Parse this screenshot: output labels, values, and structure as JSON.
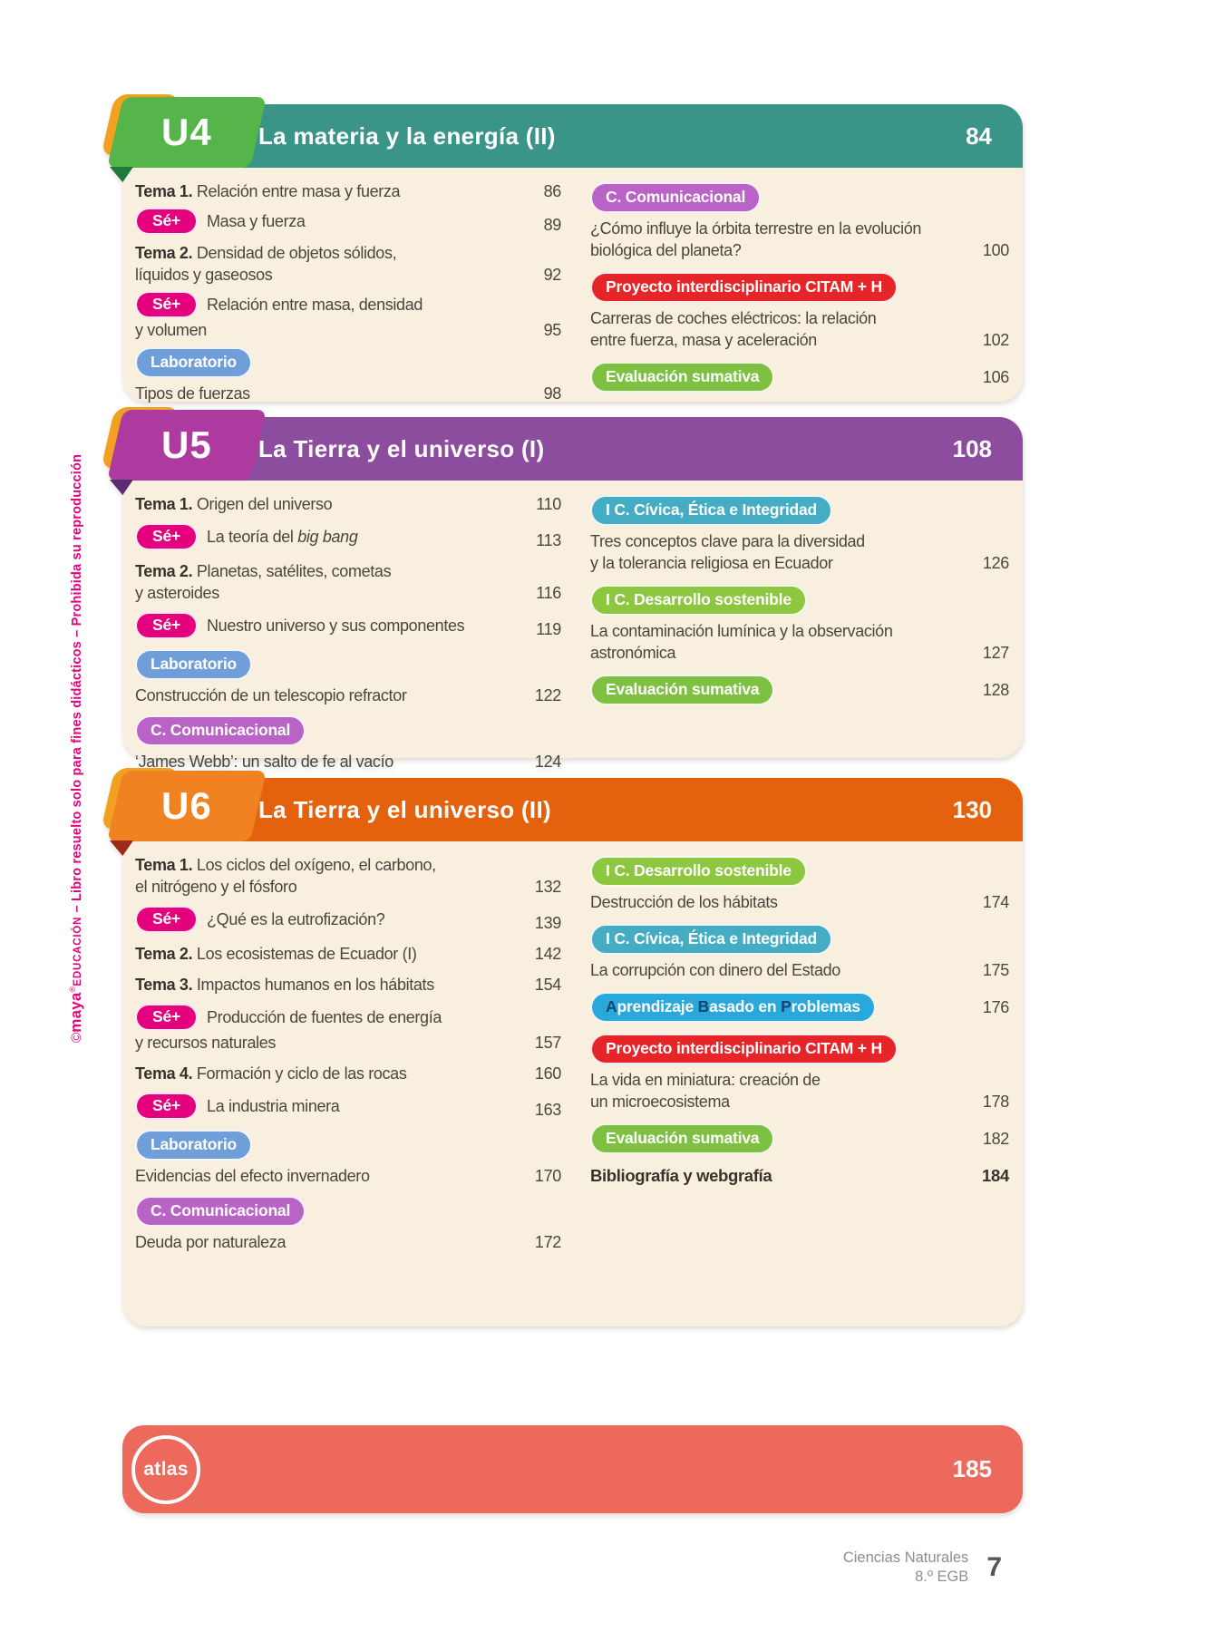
{
  "watermark": {
    "brand_prefix": "©",
    "brand": "maya",
    "registered": "®",
    "brand_suffix": "EDUCACIÓN",
    "text": " – Libro resuelto solo para fines didácticos – Prohibida su reproducción",
    "color": "#e5007d"
  },
  "pill_colors": {
    "se": "#e5007d",
    "lab": "#6f9ed9",
    "com": "#ba63c6",
    "proy": "#e62529",
    "eval": "#7ec142",
    "civ": "#45adc3",
    "des": "#8dc63f",
    "abp": "#29a8dc",
    "abp_accent": "#134672"
  },
  "units": [
    {
      "code": "U4",
      "title": "La materia y la energía (II)",
      "page": "84",
      "colors": {
        "banner": "#3a9488",
        "tab": "#56b54a",
        "accent": "#f2a01f",
        "fold": "#1d7a3c"
      },
      "left": [
        {
          "kind": "tema",
          "label": "Tema 1.",
          "text": "Relación entre masa y fuerza",
          "page": "86"
        },
        {
          "kind": "se",
          "pill": "Sé+",
          "text": "Masa y fuerza",
          "page": "89"
        },
        {
          "kind": "tema",
          "label": "Tema 2.",
          "text": "Densidad de objetos sólidos,\nlíquidos y gaseosos",
          "page": "92"
        },
        {
          "kind": "se",
          "pill": "Sé+",
          "text": "Relación entre masa, densidad\ny volumen",
          "page": "95"
        },
        {
          "kind": "pill",
          "pill": "Laboratorio",
          "style": "lab"
        },
        {
          "kind": "text",
          "text": "Tipos de fuerzas",
          "page": "98"
        }
      ],
      "right": [
        {
          "kind": "pill",
          "pill": "C. Comunicacional",
          "style": "com"
        },
        {
          "kind": "text",
          "text": "¿Cómo influye la órbita terrestre en la evolución\nbiológica del planeta?",
          "page": "100"
        },
        {
          "kind": "pill",
          "pill": "Proyecto interdisciplinario CITAM + H",
          "style": "proy"
        },
        {
          "kind": "text",
          "text": "Carreras de coches eléctricos: la relación\nentre fuerza, masa y aceleración",
          "page": "102"
        },
        {
          "kind": "pill_num",
          "pill": "Evaluación sumativa",
          "style": "eval",
          "page": "106"
        }
      ]
    },
    {
      "code": "U5",
      "title": "La Tierra y el universo (I)",
      "page": "108",
      "colors": {
        "banner": "#8c4d9f",
        "tab": "#ad3a9e",
        "accent": "#f2a01f",
        "fold": "#5a2d71"
      },
      "left": [
        {
          "kind": "tema",
          "label": "Tema 1.",
          "text": "Origen del universo",
          "page": "110"
        },
        {
          "kind": "se",
          "pill": "Sé+",
          "text": "La teoría del ",
          "italic": "big bang",
          "page": "113"
        },
        {
          "kind": "tema",
          "label": "Tema 2.",
          "text": "Planetas, satélites, cometas\ny asteroides",
          "page": "116"
        },
        {
          "kind": "se",
          "pill": "Sé+",
          "text": "Nuestro universo y sus componentes",
          "page": "119"
        },
        {
          "kind": "pill",
          "pill": "Laboratorio",
          "style": "lab"
        },
        {
          "kind": "text",
          "text": "Construcción de un telescopio refractor",
          "page": "122"
        },
        {
          "kind": "pill",
          "pill": "C. Comunicacional",
          "style": "com"
        },
        {
          "kind": "text",
          "text": "‘James Webb’: un salto de fe al vacío",
          "page": "124"
        }
      ],
      "right": [
        {
          "kind": "pill",
          "pill": "I C. Cívica, Ética e Integridad",
          "style": "civ"
        },
        {
          "kind": "text",
          "text": "Tres conceptos clave para la diversidad\ny la tolerancia religiosa en Ecuador",
          "page": "126"
        },
        {
          "kind": "pill",
          "pill": "I C. Desarrollo sostenible",
          "style": "des"
        },
        {
          "kind": "text",
          "text": "La contaminación lumínica y la observación\nastronómica",
          "page": "127"
        },
        {
          "kind": "pill_num",
          "pill": "Evaluación sumativa",
          "style": "eval",
          "page": "128"
        }
      ]
    },
    {
      "code": "U6",
      "title": "La Tierra y el universo (II)",
      "page": "130",
      "colors": {
        "banner": "#e4610e",
        "tab": "#f08221",
        "accent": "#f2a01f",
        "fold": "#9c2a1c"
      },
      "left": [
        {
          "kind": "tema",
          "label": "Tema 1.",
          "text": "Los ciclos del oxígeno, el carbono,\nel nitrógeno y el fósforo",
          "page": "132"
        },
        {
          "kind": "se",
          "pill": "Sé+",
          "text": "¿Qué es la eutrofización?",
          "page": "139"
        },
        {
          "kind": "tema",
          "label": "Tema 2.",
          "text": "Los ecosistemas de Ecuador (I)",
          "page": "142"
        },
        {
          "kind": "tema",
          "label": "Tema 3.",
          "text": "Impactos humanos en los hábitats",
          "page": "154"
        },
        {
          "kind": "se",
          "pill": "Sé+",
          "text": "Producción de fuentes de energía\ny recursos naturales",
          "page": "157"
        },
        {
          "kind": "tema",
          "label": "Tema 4.",
          "text": "Formación y ciclo de las rocas",
          "page": "160"
        },
        {
          "kind": "se",
          "pill": "Sé+",
          "text": "La industria minera",
          "page": "163"
        },
        {
          "kind": "pill",
          "pill": "Laboratorio",
          "style": "lab"
        },
        {
          "kind": "text",
          "text": "Evidencias del efecto invernadero",
          "page": "170"
        },
        {
          "kind": "pill",
          "pill": "C. Comunicacional",
          "style": "com"
        },
        {
          "kind": "text",
          "text": "Deuda por naturaleza",
          "page": "172"
        }
      ],
      "right": [
        {
          "kind": "pill",
          "pill": "I C. Desarrollo sostenible",
          "style": "des"
        },
        {
          "kind": "text",
          "text": "Destrucción de los hábitats",
          "page": "174"
        },
        {
          "kind": "pill",
          "pill": "I C. Cívica, Ética e Integridad",
          "style": "civ"
        },
        {
          "kind": "text",
          "text": "La corrupción con dinero del Estado",
          "page": "175"
        },
        {
          "kind": "pill_num",
          "style": "abp",
          "page": "176",
          "pill_parts": [
            {
              "t": "A",
              "em": true
            },
            {
              "t": "prendizaje ",
              "em": false
            },
            {
              "t": "B",
              "em": true
            },
            {
              "t": "asado en ",
              "em": false
            },
            {
              "t": "P",
              "em": true
            },
            {
              "t": "roblemas",
              "em": false
            }
          ]
        },
        {
          "kind": "pill",
          "pill": "Proyecto interdisciplinario CITAM + H",
          "style": "proy"
        },
        {
          "kind": "text",
          "text": "La vida en miniatura: creación de\nun microecosistema",
          "page": "178"
        },
        {
          "kind": "pill_num",
          "pill": "Evaluación sumativa",
          "style": "eval",
          "page": "182"
        },
        {
          "kind": "bold",
          "text": "Bibliografía y webgrafía",
          "page": "184"
        }
      ]
    }
  ],
  "atlas": {
    "logo_label": "atlas",
    "page": "185",
    "bar_color": "#ec695c"
  },
  "footer": {
    "subject": "Ciencias Naturales",
    "grade": "8.º EGB",
    "page_number": "7"
  }
}
